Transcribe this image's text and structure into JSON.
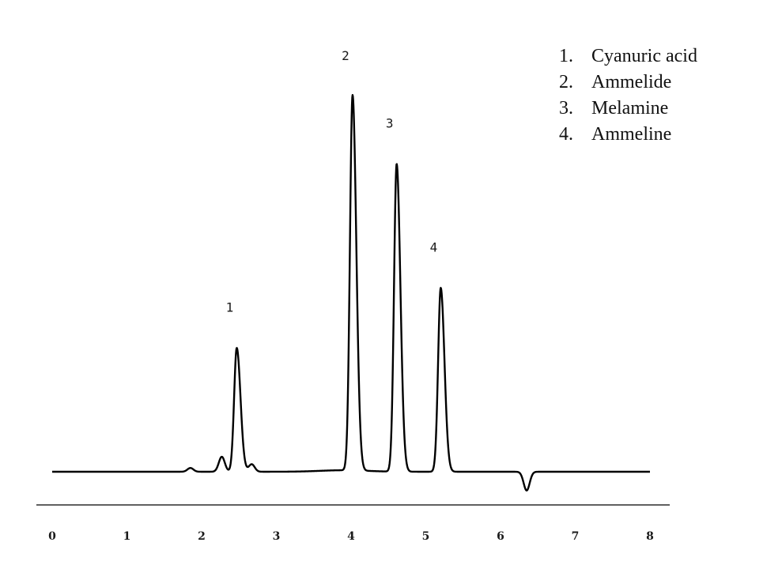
{
  "chart_data": {
    "type": "line",
    "title": "",
    "xlabel": "",
    "ylabel": "",
    "xlim": [
      0,
      8
    ],
    "ylim": [
      -0.1,
      1.15
    ],
    "grid": false,
    "x_ticks": [
      "0",
      "1",
      "2",
      "3",
      "4",
      "5",
      "6",
      "7",
      "8"
    ],
    "peaks": [
      {
        "label": "1",
        "x": 2.47,
        "height": 0.33
      },
      {
        "label": "2",
        "x": 4.02,
        "height": 1.0
      },
      {
        "label": "3",
        "x": 4.61,
        "height": 0.82
      },
      {
        "label": "4",
        "x": 5.2,
        "height": 0.49
      }
    ],
    "minor_features": [
      {
        "x": 1.85,
        "height": 0.01
      },
      {
        "x": 2.27,
        "height": 0.04
      },
      {
        "x": 2.67,
        "height": 0.02
      },
      {
        "x": 6.35,
        "height": -0.05
      }
    ],
    "legend": {
      "position": "top-right",
      "entries": [
        {
          "num": "1.",
          "name": "Cyanuric acid"
        },
        {
          "num": "2.",
          "name": "Ammelide"
        },
        {
          "num": "3.",
          "name": "Melamine"
        },
        {
          "num": "4.",
          "name": "Ammeline"
        }
      ]
    },
    "line_color": "#000000"
  }
}
